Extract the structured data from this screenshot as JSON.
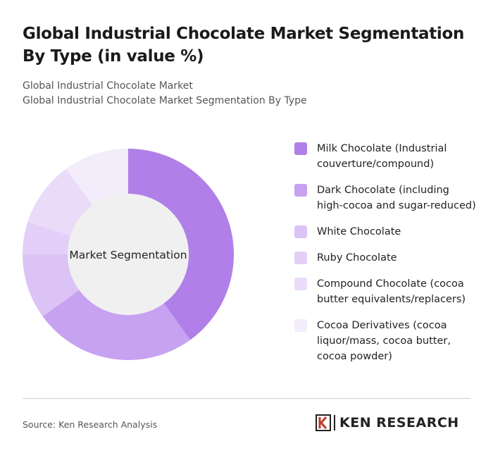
{
  "chart_data": {
    "type": "donut",
    "title": "Global Industrial Chocolate Market Segmentation By Type (in value %)",
    "subtitle": [
      "Global Industrial Chocolate Market",
      "Global Industrial Chocolate Market Segmentation By Type"
    ],
    "center_label": "Market Segmentation",
    "categories": [
      "Milk Chocolate (Industrial couverture/compound)",
      "Dark Chocolate (including high-cocoa and sugar-reduced)",
      "White Chocolate",
      "Ruby Chocolate",
      "Compound Chocolate (cocoa butter equivalents/replacers)",
      "Cocoa Derivatives (cocoa liquor/mass, cocoa butter, cocoa powder)"
    ],
    "values": [
      40,
      25,
      10,
      5,
      10,
      10
    ],
    "colors": [
      "#b07fe8",
      "#c7a2f0",
      "#dcc3f5",
      "#e3cff7",
      "#eadcf9",
      "#f3ecfb"
    ]
  },
  "source": "Source: Ken Research Analysis",
  "brand": "KEN RESEARCH"
}
